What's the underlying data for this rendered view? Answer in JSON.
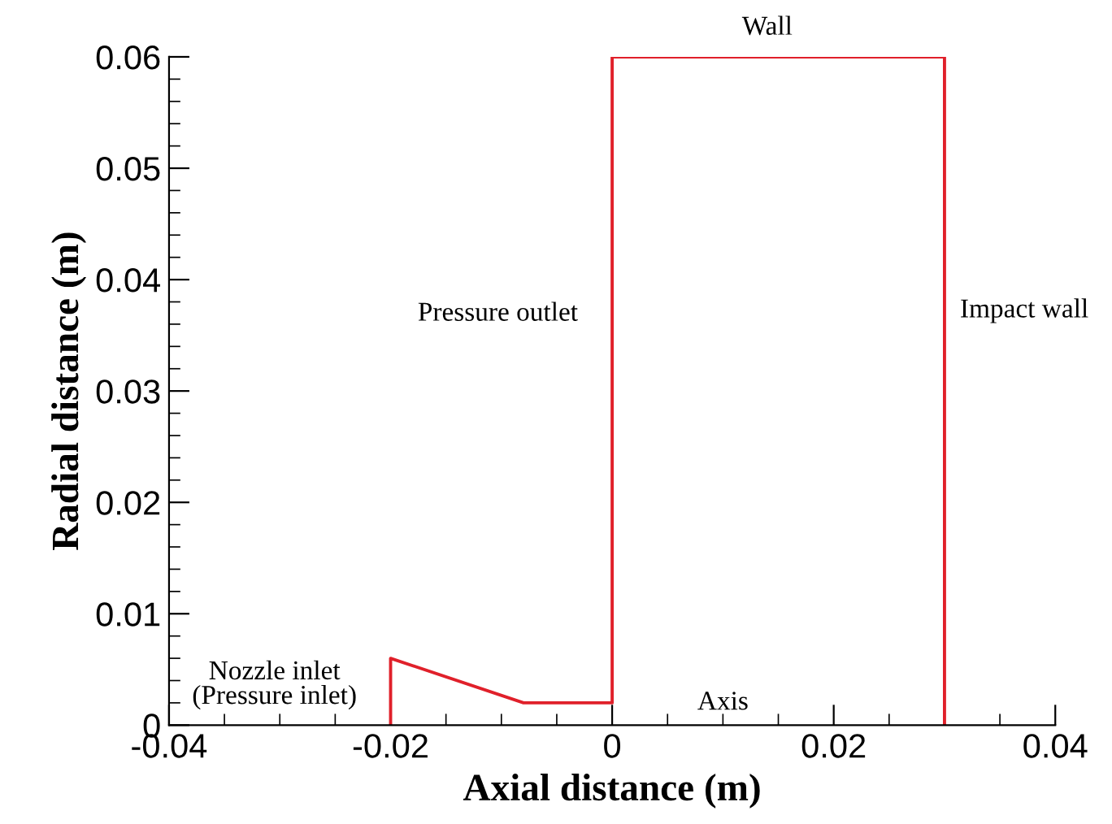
{
  "chart_data": {
    "type": "line",
    "xlabel": "Axial distance (m)",
    "ylabel": "Radial distance (m)",
    "series": [
      {
        "color": "#e0202a",
        "x": [
          -0.02,
          -0.02,
          -0.008,
          0,
          0,
          0.03,
          0.03
        ],
        "values": [
          0,
          0.006,
          0.002,
          0.002,
          0.06,
          0.06,
          0
        ]
      }
    ],
    "xlim": [
      -0.04,
      0.04
    ],
    "ylim": [
      0,
      0.06
    ],
    "xticks": [
      -0.04,
      -0.02,
      0,
      0.02,
      0.04
    ],
    "yticks": [
      0,
      0.01,
      0.02,
      0.03,
      0.04,
      0.05,
      0.06
    ],
    "annotations": [
      "Wall",
      "Pressure outlet",
      "Impact wall",
      "Nozzle inlet\n(Pressure inlet)",
      "Axis"
    ]
  }
}
